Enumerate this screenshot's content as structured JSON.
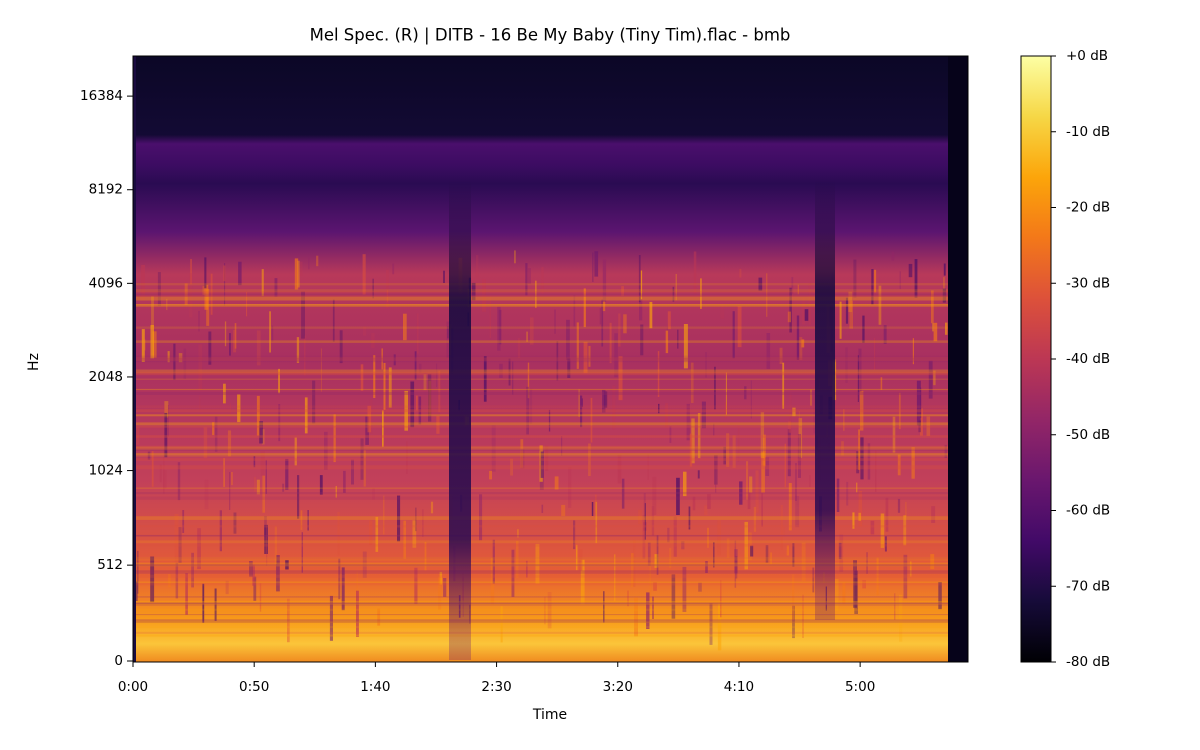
{
  "chart_data": {
    "type": "spectrogram",
    "title": "Mel Spec. (R) | DITB - 16 Be My Baby (Tiny Tim).flac - bmb",
    "x_label": "Time",
    "y_label": "Hz",
    "xlim": [
      0,
      344.5
    ],
    "xticks": [
      {
        "value": 0,
        "label": "0:00"
      },
      {
        "value": 50,
        "label": "0:50"
      },
      {
        "value": 100,
        "label": "1:40"
      },
      {
        "value": 150,
        "label": "2:30"
      },
      {
        "value": 200,
        "label": "3:20"
      },
      {
        "value": 250,
        "label": "4:10"
      },
      {
        "value": 300,
        "label": "5:00"
      }
    ],
    "ylim": [
      0,
      22050
    ],
    "yticks": [
      0,
      512,
      1024,
      2048,
      4096,
      8192,
      16384
    ],
    "y_scale": "symlog",
    "colorbar": {
      "lim": [
        -80,
        0
      ],
      "ticks": [
        {
          "value": 0,
          "label": "+0 dB"
        },
        {
          "value": -10,
          "label": "-10 dB"
        },
        {
          "value": -20,
          "label": "-20 dB"
        },
        {
          "value": -30,
          "label": "-30 dB"
        },
        {
          "value": -40,
          "label": "-40 dB"
        },
        {
          "value": -50,
          "label": "-50 dB"
        },
        {
          "value": -60,
          "label": "-60 dB"
        },
        {
          "value": -70,
          "label": "-70 dB"
        },
        {
          "value": -80,
          "label": "-80 dB"
        }
      ]
    }
  }
}
